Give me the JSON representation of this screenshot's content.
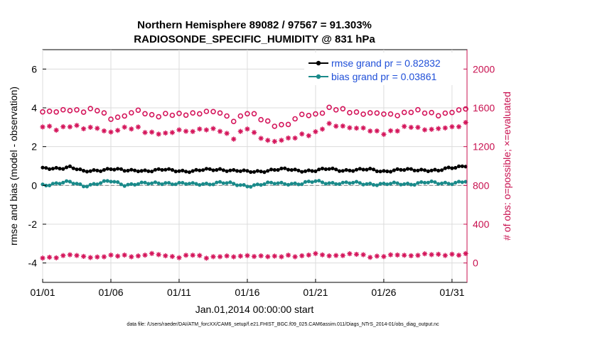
{
  "chart_data": {
    "type": "line",
    "title_line1": "Northern Hemisphere 89082 / 97567 = 91.303%",
    "title_line2": "RADIOSONDE_SPECIFIC_HUMIDITY @ 831 hPa",
    "ylabel_left": "rmse and bias (model - observation)",
    "ylabel_right": "# of obs: o=possible; ×=evaluated",
    "xlabel": "Jan.01,2014 00:00:00 start",
    "footnote": "data file: /Users/raeder/DAI/ATM_forcXX/CAM6_setup/f.e21.FHIST_BGC.f09_025.CAM6assim.011/Diags_NTrS_2014-01/obs_diag_output.nc",
    "x_ticks": [
      {
        "day": 1,
        "label": "01/01"
      },
      {
        "day": 6,
        "label": "01/06"
      },
      {
        "day": 11,
        "label": "01/11"
      },
      {
        "day": 16,
        "label": "01/16"
      },
      {
        "day": 21,
        "label": "01/21"
      },
      {
        "day": 26,
        "label": "01/26"
      },
      {
        "day": 31,
        "label": "01/31"
      }
    ],
    "x_range": [
      1,
      32.1
    ],
    "y_left_range": [
      -5,
      7
    ],
    "y_left_ticks": [
      -4,
      -2,
      0,
      2,
      4,
      6
    ],
    "y_right_range": [
      -200,
      2200
    ],
    "y_right_ticks": [
      0,
      400,
      800,
      1200,
      1600,
      2000
    ],
    "colors": {
      "rmse": "#000000",
      "bias": "#1a8a8a",
      "obs": "#d4145a",
      "right_axis": "#c8104f",
      "legend_text": "#1f4fd8"
    },
    "legend": {
      "position": "top-right",
      "rmse_label": "rmse grand pr = 0.82832",
      "bias_label": "bias grand pr = 0.03861"
    },
    "series": [
      {
        "name": "rmse",
        "axis": "left",
        "day_values": [
          0.85,
          0.9,
          0.95,
          0.7,
          0.8,
          0.85,
          0.75,
          0.8,
          0.75,
          0.8,
          0.78,
          0.72,
          0.8,
          0.85,
          0.75,
          0.7,
          0.75,
          0.8,
          0.82,
          0.78,
          0.75,
          0.85,
          0.8,
          0.78,
          0.82,
          0.75,
          0.78,
          0.8,
          0.82,
          0.75,
          0.9,
          1.05
        ]
      },
      {
        "name": "bias",
        "axis": "left",
        "day_values": [
          0.05,
          0.1,
          0.15,
          0.0,
          0.1,
          0.2,
          0.05,
          0.1,
          0.08,
          0.15,
          0.1,
          0.05,
          0.1,
          0.15,
          0.05,
          0.0,
          0.05,
          0.1,
          0.12,
          0.08,
          0.2,
          0.15,
          0.1,
          0.12,
          0.1,
          0.05,
          0.08,
          0.1,
          0.15,
          0.1,
          0.15,
          0.2
        ]
      },
      {
        "name": "possible_obs",
        "axis": "right",
        "marker": "circle",
        "day_values": [
          1560,
          1550,
          1590,
          1570,
          1570,
          1500,
          1520,
          1560,
          1530,
          1530,
          1520,
          1550,
          1560,
          1540,
          1480,
          1550,
          1480,
          1430,
          1430,
          1520,
          1540,
          1590,
          1570,
          1560,
          1540,
          1530,
          1540,
          1560,
          1550,
          1540,
          1550,
          1580
        ]
      },
      {
        "name": "evaluated_obs",
        "axis": "right",
        "marker": "asterisk",
        "day_values": [
          1400,
          1390,
          1420,
          1380,
          1400,
          1350,
          1380,
          1400,
          1340,
          1320,
          1380,
          1360,
          1370,
          1380,
          1290,
          1380,
          1300,
          1250,
          1270,
          1330,
          1340,
          1420,
          1420,
          1390,
          1360,
          1350,
          1370,
          1400,
          1390,
          1380,
          1390,
          1450
        ]
      },
      {
        "name": "obs_low",
        "axis": "right",
        "marker": "asterisk",
        "day_values": [
          60,
          60,
          80,
          70,
          60,
          70,
          80,
          70,
          90,
          80,
          60,
          80,
          60,
          70,
          60,
          80,
          70,
          60,
          80,
          70,
          90,
          80,
          80,
          90,
          70,
          70,
          80,
          80,
          90,
          80,
          90,
          90
        ]
      }
    ]
  }
}
